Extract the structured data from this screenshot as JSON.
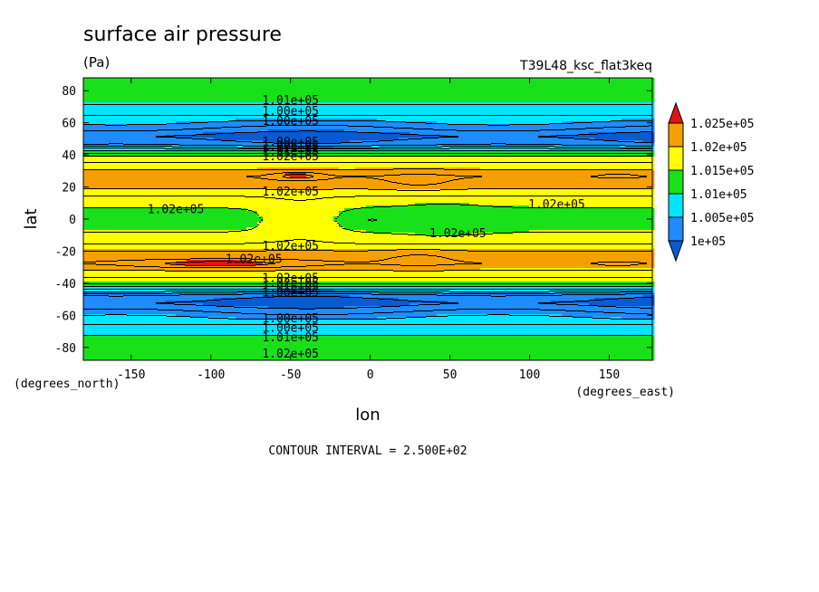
{
  "chart_data": {
    "type": "heatmap",
    "title": "surface air pressure",
    "units": "(Pa)",
    "dataset": "T39L48_ksc_flat3keq",
    "xlabel": "lon",
    "ylabel": "lat",
    "x_unit_label": "(degrees_east)",
    "y_unit_label": "(degrees_north)",
    "xlim": [
      -180,
      177
    ],
    "ylim": [
      -88,
      88
    ],
    "x_ticks": [
      -150,
      -100,
      -50,
      0,
      50,
      100,
      150
    ],
    "y_ticks": [
      -80,
      -60,
      -40,
      -20,
      0,
      20,
      40,
      60,
      80
    ],
    "contour_interval_text": "CONTOUR INTERVAL = 2.500E+02",
    "legend": {
      "levels": [
        "1.025e+05",
        "1.02e+05",
        "1.015e+05",
        "1.01e+05",
        "1.005e+05",
        "1e+05"
      ],
      "colors": [
        "#e11414",
        "#f5a000",
        "#ffff00",
        "#19e119",
        "#00e6ff",
        "#1e8cff",
        "#0a5ad2"
      ]
    },
    "lat_profile": [
      {
        "lat": 88,
        "value": 101050
      },
      {
        "lat": 82,
        "value": 101150
      },
      {
        "lat": 76,
        "value": 101100
      },
      {
        "lat": 70,
        "value": 100950
      },
      {
        "lat": 64,
        "value": 100700
      },
      {
        "lat": 58,
        "value": 100300
      },
      {
        "lat": 52,
        "value": 99900
      },
      {
        "lat": 47,
        "value": 100150
      },
      {
        "lat": 43,
        "value": 101000
      },
      {
        "lat": 39,
        "value": 101600
      },
      {
        "lat": 33,
        "value": 101900
      },
      {
        "lat": 27,
        "value": 102250
      },
      {
        "lat": 21,
        "value": 102100
      },
      {
        "lat": 16,
        "value": 101800
      },
      {
        "lat": 10,
        "value": 101550
      },
      {
        "lat": 5,
        "value": 101450
      },
      {
        "lat": 0,
        "value": 101400
      },
      {
        "lat": -5,
        "value": 101450
      },
      {
        "lat": -10,
        "value": 101550
      },
      {
        "lat": -16,
        "value": 101800
      },
      {
        "lat": -21,
        "value": 102100
      },
      {
        "lat": -27,
        "value": 102250
      },
      {
        "lat": -33,
        "value": 101900
      },
      {
        "lat": -39,
        "value": 101600
      },
      {
        "lat": -43,
        "value": 101000
      },
      {
        "lat": -47,
        "value": 100150
      },
      {
        "lat": -52,
        "value": 99900
      },
      {
        "lat": -58,
        "value": 100300
      },
      {
        "lat": -64,
        "value": 100700
      },
      {
        "lat": -70,
        "value": 100950
      },
      {
        "lat": -76,
        "value": 101100
      },
      {
        "lat": -82,
        "value": 101150
      },
      {
        "lat": -88,
        "value": 101050
      }
    ],
    "anomalies": [
      {
        "lon": -46,
        "lat": 27.5,
        "dlon": 15,
        "dlat": 2.3,
        "amp": 400
      },
      {
        "lon": -95,
        "lat": -27.5,
        "dlon": 50,
        "dlat": 2.5,
        "amp": 420
      },
      {
        "lon": 155,
        "lat": 27.5,
        "dlon": 9,
        "dlat": 1.0,
        "amp": 260
      },
      {
        "lon": 155,
        "lat": -27.5,
        "dlon": 9,
        "dlat": 1.0,
        "amp": 260
      },
      {
        "lon": -45,
        "lat": 0,
        "dlon": 22,
        "dlat": 12,
        "amp": 300
      },
      {
        "lon": 45,
        "lat": 0,
        "dlon": 30,
        "dlat": 10,
        "amp": -120
      },
      {
        "lon": 0,
        "lat": 0,
        "dlon": 12,
        "dlat": 4,
        "amp": -150
      },
      {
        "lon": 30,
        "lat": 24,
        "dlon": 22,
        "dlat": 6,
        "amp": 150
      },
      {
        "lon": 30,
        "lat": -24,
        "dlon": 22,
        "dlat": 6,
        "amp": 150
      }
    ],
    "contour_labels": [
      {
        "text": "1.01e+05",
        "lon": -50,
        "lat": 74
      },
      {
        "text": "1.00e+05",
        "lon": -50,
        "lat": 67
      },
      {
        "text": "1.00e+05",
        "lon": -50,
        "lat": 61
      },
      {
        "text": "1.00e+05",
        "lon": -50,
        "lat": 48
      },
      {
        "text": "1.00e+05",
        "lon": -50,
        "lat": 45
      },
      {
        "text": "1.01e+05",
        "lon": -50,
        "lat": 42
      },
      {
        "text": "1.02e+05",
        "lon": -50,
        "lat": 39
      },
      {
        "text": "1.02e+05",
        "lon": -50,
        "lat": 17
      },
      {
        "text": "1.02e+05",
        "lon": -122,
        "lat": 6
      },
      {
        "text": "1.02e+05",
        "lon": 117,
        "lat": 9
      },
      {
        "text": "1.02e+05",
        "lon": 55,
        "lat": -9
      },
      {
        "text": "1.02e+05",
        "lon": -50,
        "lat": -17
      },
      {
        "text": "1.02e+05",
        "lon": -73,
        "lat": -25
      },
      {
        "text": "1.02e+05",
        "lon": -50,
        "lat": -37
      },
      {
        "text": "1.02e+05",
        "lon": -50,
        "lat": -40
      },
      {
        "text": "1.01e+05",
        "lon": -50,
        "lat": -43
      },
      {
        "text": "1.00e+05",
        "lon": -50,
        "lat": -46
      },
      {
        "text": "1.00e+05",
        "lon": -50,
        "lat": -62
      },
      {
        "text": "1.00e+05",
        "lon": -50,
        "lat": -68
      },
      {
        "text": "1.01e+05",
        "lon": -50,
        "lat": -74
      },
      {
        "text": "1.02e+05",
        "lon": -50,
        "lat": -84
      }
    ]
  }
}
